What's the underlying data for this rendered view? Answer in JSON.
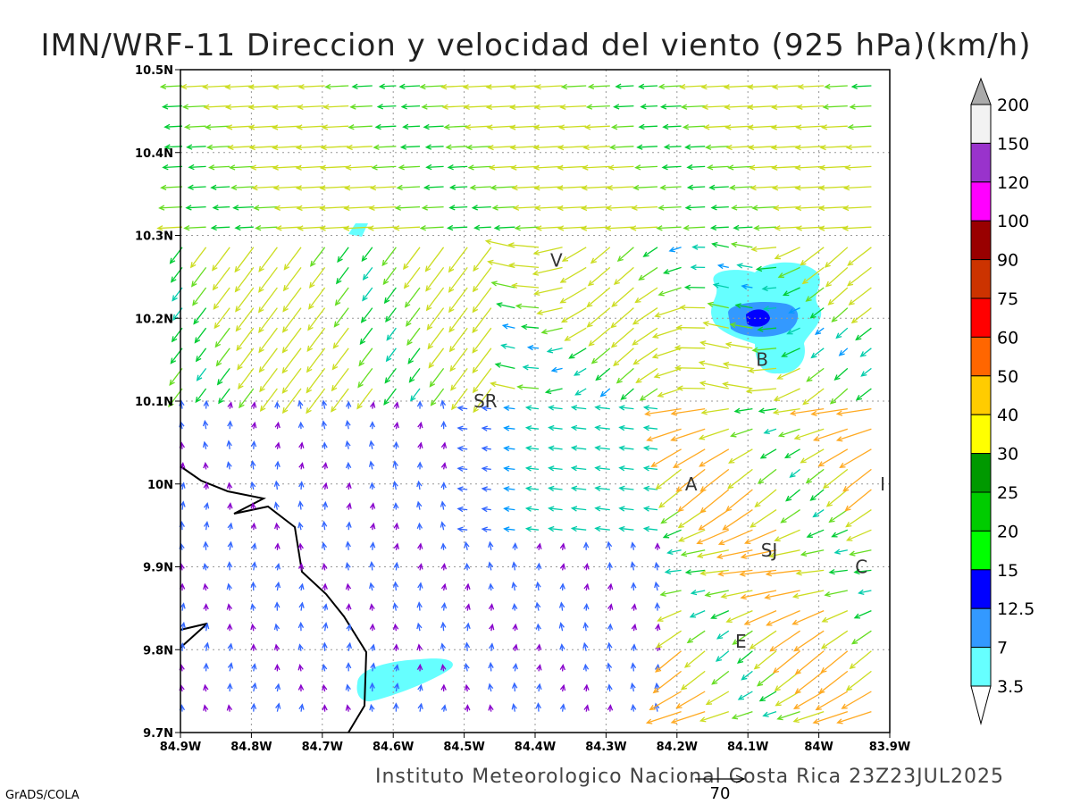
{
  "title": "IMN/WRF-11 Direccion y velocidad del viento (925 hPa)(km/h)",
  "footer": "Instituto Meteorologico Nacional Costa Rica  23Z23JUL2025",
  "credit": "GrADS/COLA",
  "reference_vector": {
    "label": "70",
    "value": 70
  },
  "map": {
    "lon_range": [
      -84.9,
      -83.9
    ],
    "lat_range": [
      9.7,
      10.5
    ],
    "x_ticks": [
      "84.9W",
      "84.8W",
      "84.7W",
      "84.6W",
      "84.5W",
      "84.4W",
      "84.3W",
      "84.2W",
      "84.1W",
      "84W",
      "83.9W"
    ],
    "y_ticks": [
      "9.7N",
      "9.8N",
      "9.9N",
      "10N",
      "10.1N",
      "10.2N",
      "10.3N",
      "10.4N",
      "10.5N"
    ],
    "places": [
      {
        "label": "V",
        "lon": -84.37,
        "lat": 10.27
      },
      {
        "label": "SR",
        "lon": -84.47,
        "lat": 10.1
      },
      {
        "label": "B",
        "lon": -84.08,
        "lat": 10.15
      },
      {
        "label": "A",
        "lon": -84.18,
        "lat": 10.0
      },
      {
        "label": "I",
        "lon": -83.91,
        "lat": 10.0
      },
      {
        "label": "SJ",
        "lon": -84.07,
        "lat": 9.92
      },
      {
        "label": "C",
        "lon": -83.94,
        "lat": 9.9
      },
      {
        "label": "E",
        "lon": -84.11,
        "lat": 9.81
      }
    ]
  },
  "colorbar": {
    "labels": [
      "200",
      "150",
      "120",
      "100",
      "90",
      "75",
      "60",
      "50",
      "40",
      "30",
      "25",
      "20",
      "15",
      "12.5",
      "7",
      "3.5"
    ],
    "colors": [
      "#f2f2f2",
      "#9933cc",
      "#ff00ff",
      "#990000",
      "#cc3300",
      "#ff0000",
      "#ff6600",
      "#ffcc00",
      "#ffff00",
      "#009900",
      "#00cc00",
      "#00ff00",
      "#0000ff",
      "#3399ff",
      "#66ffff"
    ],
    "over_color": "#aaaaaa",
    "under_color": "#ffffff"
  },
  "shading_colors": {
    "light": "#66ffff",
    "mid": "#3399ff",
    "dark": "#0000ff"
  }
}
